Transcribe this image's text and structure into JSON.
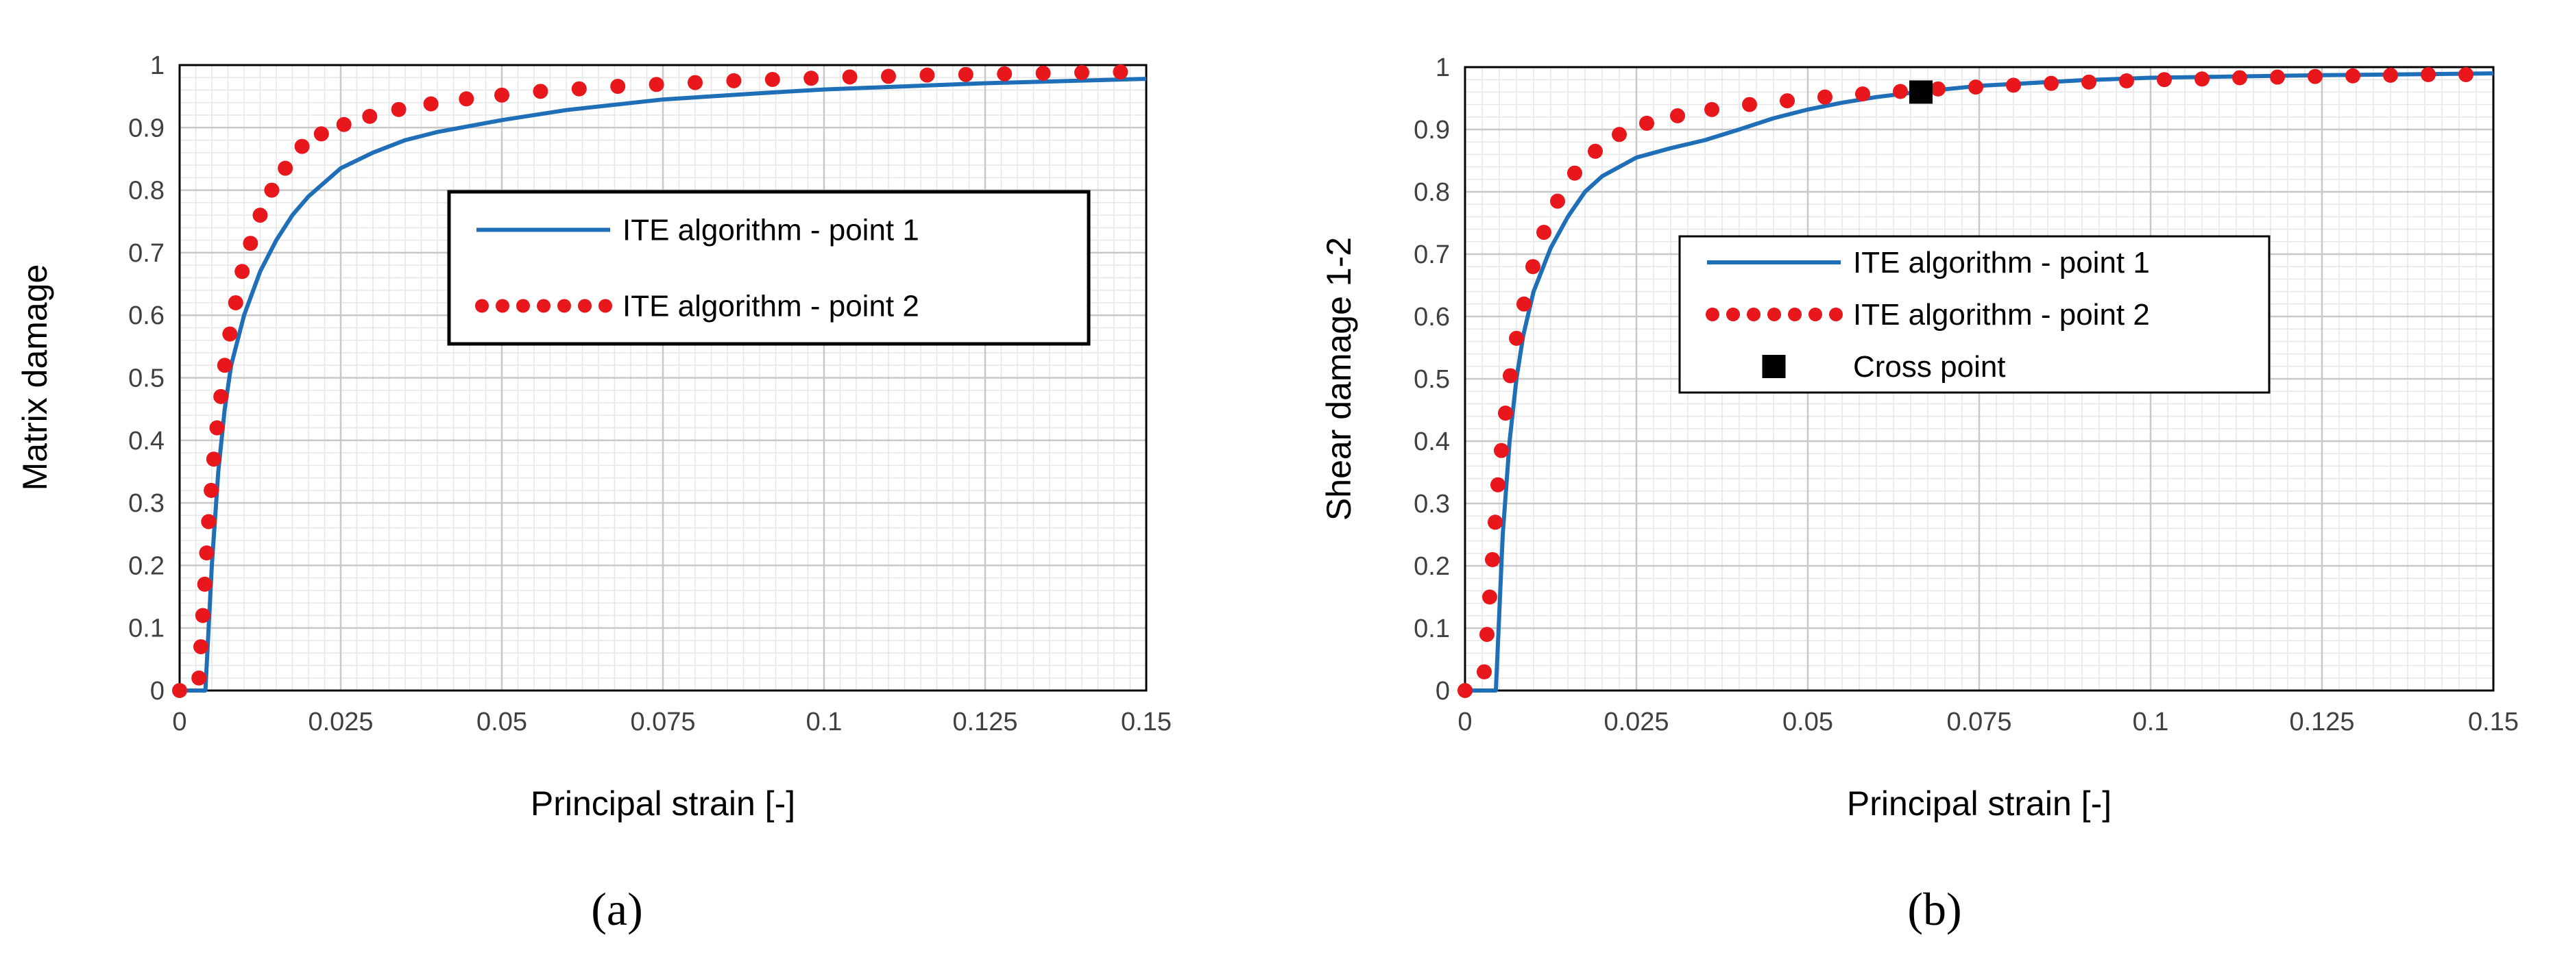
{
  "chart_data": [
    {
      "type": "line",
      "panel_label": "(a)",
      "xlabel": "Principal strain [-]",
      "ylabel": "Matrix damage",
      "xlim": [
        0,
        0.15
      ],
      "ylim": [
        0,
        1
      ],
      "xticks": [
        "0",
        "0.025",
        "0.05",
        "0.075",
        "0.1",
        "0.125",
        "0.15"
      ],
      "yticks": [
        "0",
        "0.1",
        "0.2",
        "0.3",
        "0.4",
        "0.5",
        "0.6",
        "0.7",
        "0.8",
        "0.9",
        "1"
      ],
      "legend": [
        "ITE algorithm - point 1",
        "ITE algorithm - point 2"
      ],
      "series": [
        {
          "name": "ITE algorithm - point 1",
          "style": "solid",
          "color": "#1f6fb8",
          "x": [
            0,
            0.004,
            0.005,
            0.006,
            0.007,
            0.008,
            0.01,
            0.0125,
            0.015,
            0.0175,
            0.02,
            0.025,
            0.03,
            0.035,
            0.04,
            0.05,
            0.06,
            0.075,
            0.09,
            0.1,
            0.125,
            0.15
          ],
          "y": [
            0,
            0,
            0.2,
            0.35,
            0.45,
            0.52,
            0.6,
            0.67,
            0.72,
            0.76,
            0.79,
            0.835,
            0.86,
            0.88,
            0.893,
            0.912,
            0.928,
            0.945,
            0.955,
            0.961,
            0.971,
            0.978
          ]
        },
        {
          "name": "ITE algorithm - point 2",
          "style": "dotted-markers",
          "color": "#e8171c",
          "x": [
            0,
            0.003,
            0.0033,
            0.0036,
            0.0039,
            0.0042,
            0.0045,
            0.0049,
            0.0053,
            0.0058,
            0.0064,
            0.007,
            0.0078,
            0.0087,
            0.0097,
            0.011,
            0.0125,
            0.0143,
            0.0164,
            0.019,
            0.022,
            0.0255,
            0.0295,
            0.034,
            0.039,
            0.0445,
            0.05,
            0.056,
            0.062,
            0.068,
            0.074,
            0.08,
            0.086,
            0.092,
            0.098,
            0.104,
            0.11,
            0.116,
            0.122,
            0.128,
            0.134,
            0.14,
            0.146
          ],
          "y": [
            0,
            0.02,
            0.07,
            0.12,
            0.17,
            0.22,
            0.27,
            0.32,
            0.37,
            0.42,
            0.47,
            0.52,
            0.57,
            0.62,
            0.67,
            0.715,
            0.76,
            0.8,
            0.835,
            0.87,
            0.89,
            0.905,
            0.918,
            0.929,
            0.938,
            0.946,
            0.952,
            0.958,
            0.962,
            0.966,
            0.969,
            0.972,
            0.975,
            0.977,
            0.979,
            0.981,
            0.982,
            0.984,
            0.985,
            0.986,
            0.987,
            0.988,
            0.989
          ]
        }
      ]
    },
    {
      "type": "line",
      "panel_label": "(b)",
      "xlabel": "Principal strain [-]",
      "ylabel": "Shear damage 1-2",
      "xlim": [
        0,
        0.15
      ],
      "ylim": [
        0,
        1
      ],
      "xticks": [
        "0",
        "0.025",
        "0.05",
        "0.075",
        "0.1",
        "0.125",
        "0.15"
      ],
      "yticks": [
        "0",
        "0.1",
        "0.2",
        "0.3",
        "0.4",
        "0.5",
        "0.6",
        "0.7",
        "0.8",
        "0.9",
        "1"
      ],
      "legend": [
        "ITE algorithm - point 1",
        "ITE algorithm - point 2",
        "Cross point"
      ],
      "series": [
        {
          "name": "ITE algorithm - point 1",
          "style": "solid",
          "color": "#1f6fb8",
          "x": [
            0,
            0.0045,
            0.0055,
            0.0065,
            0.0075,
            0.0085,
            0.01,
            0.0125,
            0.015,
            0.0175,
            0.02,
            0.025,
            0.03,
            0.035,
            0.04,
            0.045,
            0.05,
            0.055,
            0.06,
            0.066,
            0.075,
            0.09,
            0.1,
            0.125,
            0.15
          ],
          "y": [
            0,
            0,
            0.25,
            0.4,
            0.5,
            0.57,
            0.64,
            0.71,
            0.76,
            0.8,
            0.825,
            0.855,
            0.87,
            0.883,
            0.9,
            0.918,
            0.932,
            0.943,
            0.952,
            0.96,
            0.97,
            0.979,
            0.983,
            0.987,
            0.99
          ]
        },
        {
          "name": "ITE algorithm - point 2",
          "style": "dotted-markers",
          "color": "#e8171c",
          "x": [
            0,
            0.0028,
            0.0032,
            0.0036,
            0.004,
            0.0044,
            0.0048,
            0.0053,
            0.0059,
            0.0066,
            0.0075,
            0.0086,
            0.0099,
            0.0115,
            0.0135,
            0.016,
            0.019,
            0.0225,
            0.0265,
            0.031,
            0.036,
            0.0415,
            0.047,
            0.0525,
            0.058,
            0.0635,
            0.069,
            0.0745,
            0.08,
            0.0855,
            0.091,
            0.0965,
            0.102,
            0.1075,
            0.113,
            0.1185,
            0.124,
            0.1295,
            0.135,
            0.1405,
            0.146
          ],
          "y": [
            0,
            0.03,
            0.09,
            0.15,
            0.21,
            0.27,
            0.33,
            0.385,
            0.445,
            0.505,
            0.565,
            0.62,
            0.68,
            0.735,
            0.785,
            0.83,
            0.865,
            0.892,
            0.91,
            0.922,
            0.932,
            0.94,
            0.946,
            0.952,
            0.957,
            0.961,
            0.965,
            0.968,
            0.971,
            0.974,
            0.976,
            0.978,
            0.98,
            0.981,
            0.983,
            0.984,
            0.985,
            0.986,
            0.987,
            0.988,
            0.988
          ]
        },
        {
          "name": "Cross point",
          "style": "square-marker",
          "color": "#000000",
          "x": [
            0.0665
          ],
          "y": [
            0.96
          ]
        }
      ]
    }
  ]
}
